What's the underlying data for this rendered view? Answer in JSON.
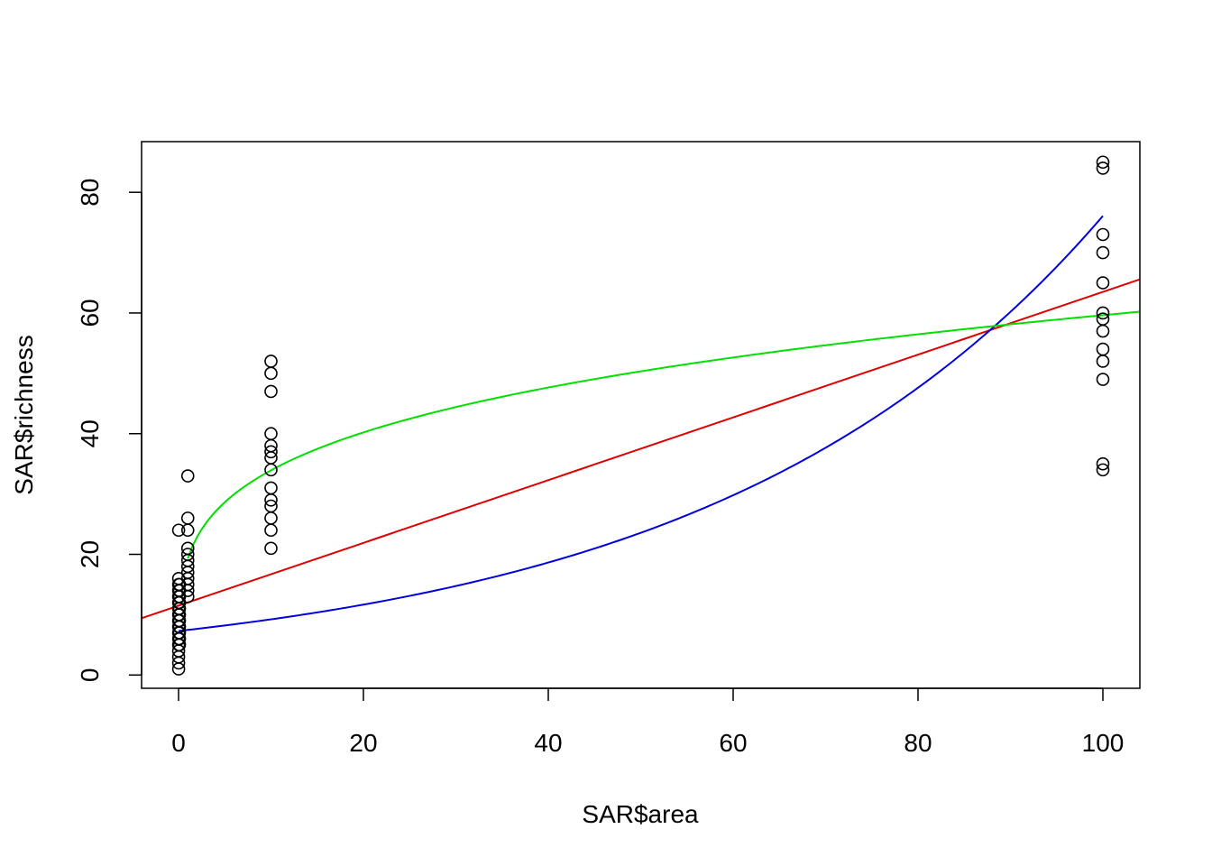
{
  "chart_data": {
    "type": "scatter",
    "xlabel": "SAR$area",
    "ylabel": "SAR$richness",
    "xlim": [
      -4,
      104
    ],
    "ylim": [
      -2.2,
      88.4
    ],
    "x_ticks": [
      0,
      20,
      40,
      60,
      80,
      100
    ],
    "y_ticks": [
      0,
      20,
      40,
      60,
      80
    ],
    "x_tick_labels": [
      "0",
      "20",
      "40",
      "60",
      "80",
      "100"
    ],
    "y_tick_labels": [
      "0",
      "20",
      "40",
      "60",
      "80"
    ],
    "grid": false,
    "points": [
      [
        0.01,
        1
      ],
      [
        0.01,
        2
      ],
      [
        0.01,
        3
      ],
      [
        0.01,
        4
      ],
      [
        0.01,
        5
      ],
      [
        0.01,
        6
      ],
      [
        0.01,
        7
      ],
      [
        0.01,
        8
      ],
      [
        0.01,
        9
      ],
      [
        0.01,
        10
      ],
      [
        0.01,
        11
      ],
      [
        0.01,
        12
      ],
      [
        0.01,
        13
      ],
      [
        0.01,
        14
      ],
      [
        0.01,
        15
      ],
      [
        0.01,
        16
      ],
      [
        0.01,
        24
      ],
      [
        0.1,
        5
      ],
      [
        0.1,
        6
      ],
      [
        0.1,
        7
      ],
      [
        0.1,
        8
      ],
      [
        0.1,
        9
      ],
      [
        0.1,
        10
      ],
      [
        0.1,
        11
      ],
      [
        0.1,
        12
      ],
      [
        0.1,
        13
      ],
      [
        0.1,
        14
      ],
      [
        0.1,
        15
      ],
      [
        1,
        13
      ],
      [
        1,
        14
      ],
      [
        1,
        15
      ],
      [
        1,
        16
      ],
      [
        1,
        17
      ],
      [
        1,
        18
      ],
      [
        1,
        19
      ],
      [
        1,
        20
      ],
      [
        1,
        21
      ],
      [
        1,
        24
      ],
      [
        1,
        26
      ],
      [
        1,
        33
      ],
      [
        10,
        21
      ],
      [
        10,
        24
      ],
      [
        10,
        26
      ],
      [
        10,
        28
      ],
      [
        10,
        29
      ],
      [
        10,
        31
      ],
      [
        10,
        34
      ],
      [
        10,
        36
      ],
      [
        10,
        37
      ],
      [
        10,
        38
      ],
      [
        10,
        40
      ],
      [
        10,
        47
      ],
      [
        10,
        50
      ],
      [
        10,
        52
      ],
      [
        100,
        34
      ],
      [
        100,
        35
      ],
      [
        100,
        49
      ],
      [
        100,
        52
      ],
      [
        100,
        54
      ],
      [
        100,
        57
      ],
      [
        100,
        59
      ],
      [
        100,
        60
      ],
      [
        100,
        65
      ],
      [
        100,
        70
      ],
      [
        100,
        73
      ],
      [
        100,
        84
      ],
      [
        100,
        85
      ]
    ],
    "series": [
      {
        "type": "linear",
        "intercept": 11.5,
        "slope": 0.52,
        "color": "#e00000"
      },
      {
        "type": "exponential",
        "a": 7.3,
        "b": 0.02344,
        "x_range": [
          0,
          100
        ],
        "color": "#0000e0"
      },
      {
        "type": "power",
        "a": 19.3,
        "b": 0.245,
        "x_range": [
          1,
          104
        ],
        "color": "#00e000"
      }
    ]
  }
}
